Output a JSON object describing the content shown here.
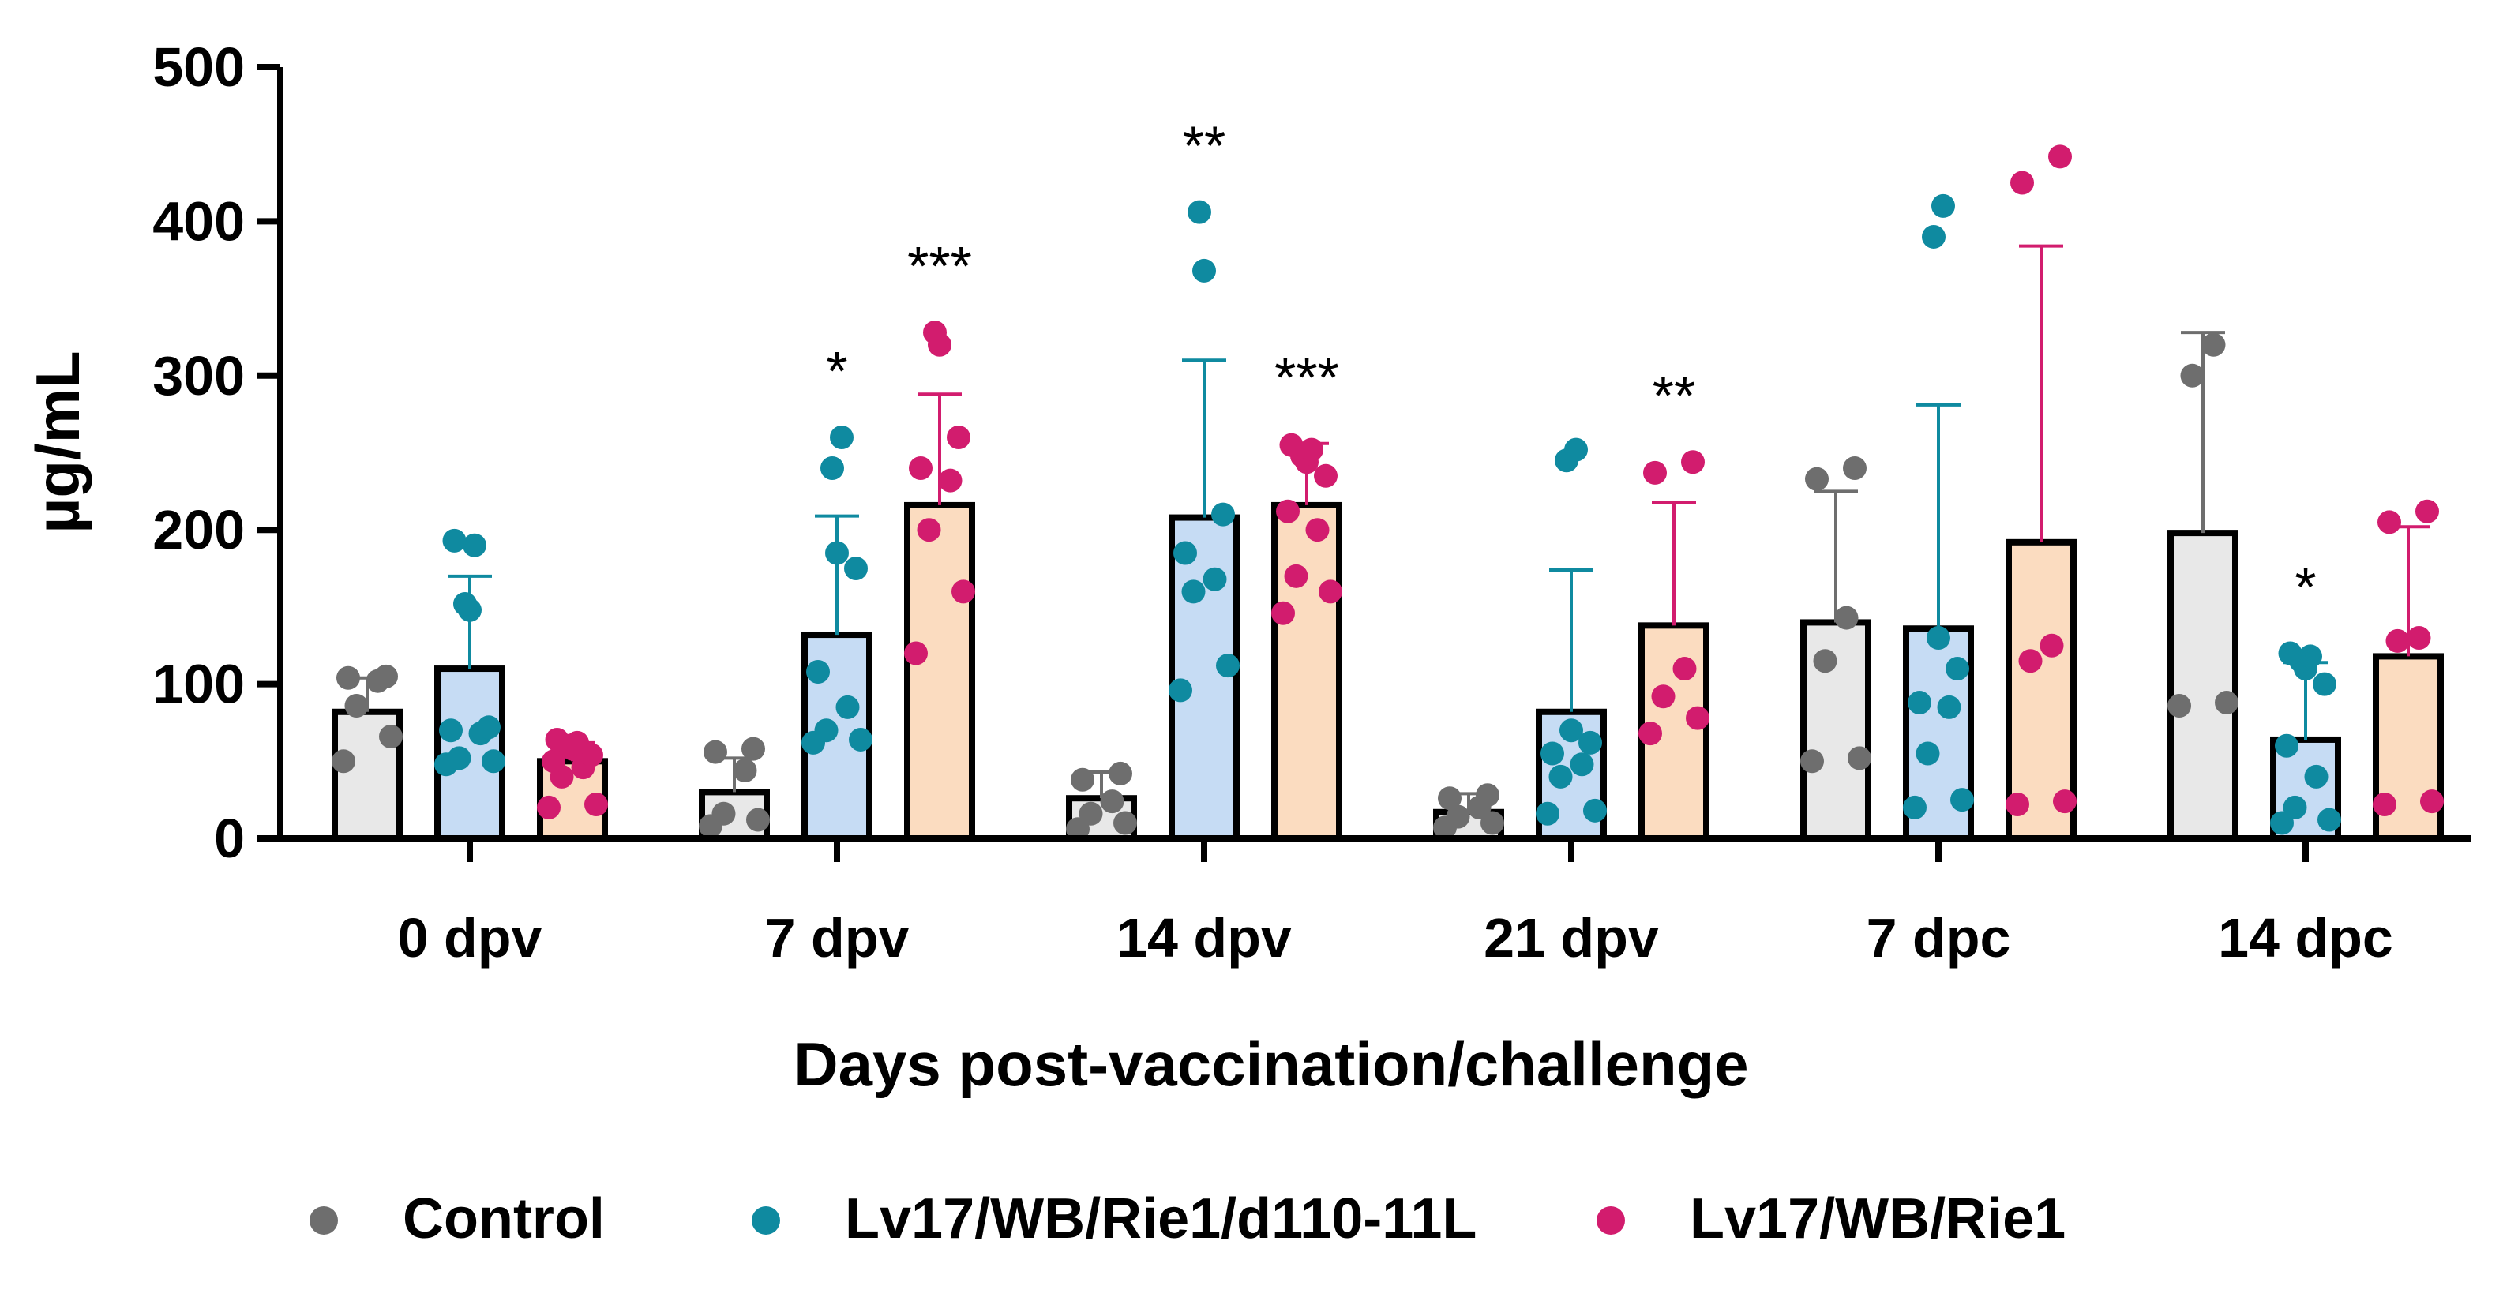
{
  "chart_data": {
    "type": "bar",
    "title": "",
    "xlabel": "Days post-vaccination/challenge",
    "ylabel": "µg/mL",
    "ylim": [
      0,
      500
    ],
    "yticks": [
      0,
      100,
      200,
      300,
      400,
      500
    ],
    "categories": [
      "0 dpv",
      "7 dpv",
      "14 dpv",
      "21 dpv",
      "7 dpc",
      "14 dpc"
    ],
    "series": [
      {
        "name": "Control",
        "color": "#6e6e6e",
        "fill": "#e8e8e8",
        "means": [
          82,
          30,
          26,
          17,
          140,
          198
        ],
        "sd": [
          22,
          22,
          17,
          12,
          85,
          130
        ],
        "points": [
          [
            50,
            66,
            86,
            102,
            104,
            105
          ],
          [
            8,
            12,
            16,
            44,
            56,
            58
          ],
          [
            6,
            10,
            16,
            24,
            38,
            42
          ],
          [
            7,
            10,
            14,
            20,
            26,
            28
          ],
          [
            50,
            52,
            115,
            143,
            233,
            240
          ],
          [
            86,
            88,
            300,
            320
          ]
        ],
        "significance": [
          "",
          "",
          "",
          "",
          "",
          ""
        ]
      },
      {
        "name": "Lv17/WB/Rie1/d110-11L",
        "color": "#0f8aa0",
        "fill": "#c6dcf4",
        "means": [
          110,
          132,
          208,
          82,
          136,
          64
        ],
        "sd": [
          60,
          77,
          102,
          92,
          145,
          50
        ],
        "points": [
          [
            48,
            50,
            52,
            68,
            70,
            72,
            148,
            152,
            190,
            193
          ],
          [
            62,
            64,
            70,
            85,
            108,
            175,
            185,
            240,
            260
          ],
          [
            96,
            112,
            160,
            168,
            185,
            210,
            368,
            406
          ],
          [
            16,
            18,
            40,
            48,
            55,
            62,
            70,
            245,
            252
          ],
          [
            20,
            25,
            55,
            85,
            88,
            110,
            130,
            390,
            410
          ],
          [
            10,
            12,
            20,
            40,
            60,
            100,
            110,
            115,
            118,
            120
          ]
        ],
        "significance": [
          "",
          "*",
          "**",
          "",
          "",
          "*"
        ]
      },
      {
        "name": "Lv17/WB/Rie1",
        "color": "#d21c6e",
        "fill": "#fbdcc0",
        "means": [
          50,
          216,
          216,
          138,
          192,
          118
        ],
        "sd": [
          12,
          72,
          40,
          80,
          192,
          84
        ],
        "points": [
          [
            20,
            22,
            40,
            46,
            50,
            54,
            58,
            60,
            62,
            64
          ],
          [
            120,
            160,
            200,
            232,
            240,
            260,
            320,
            328
          ],
          [
            146,
            160,
            170,
            200,
            212,
            235,
            244,
            248,
            252,
            255
          ],
          [
            68,
            78,
            92,
            110,
            237,
            244
          ],
          [
            22,
            24,
            115,
            125,
            425,
            442
          ],
          [
            22,
            24,
            128,
            130,
            205,
            212
          ]
        ],
        "significance": [
          "",
          "***",
          "***",
          "**",
          "",
          ""
        ]
      }
    ],
    "legend_position": "bottom"
  }
}
